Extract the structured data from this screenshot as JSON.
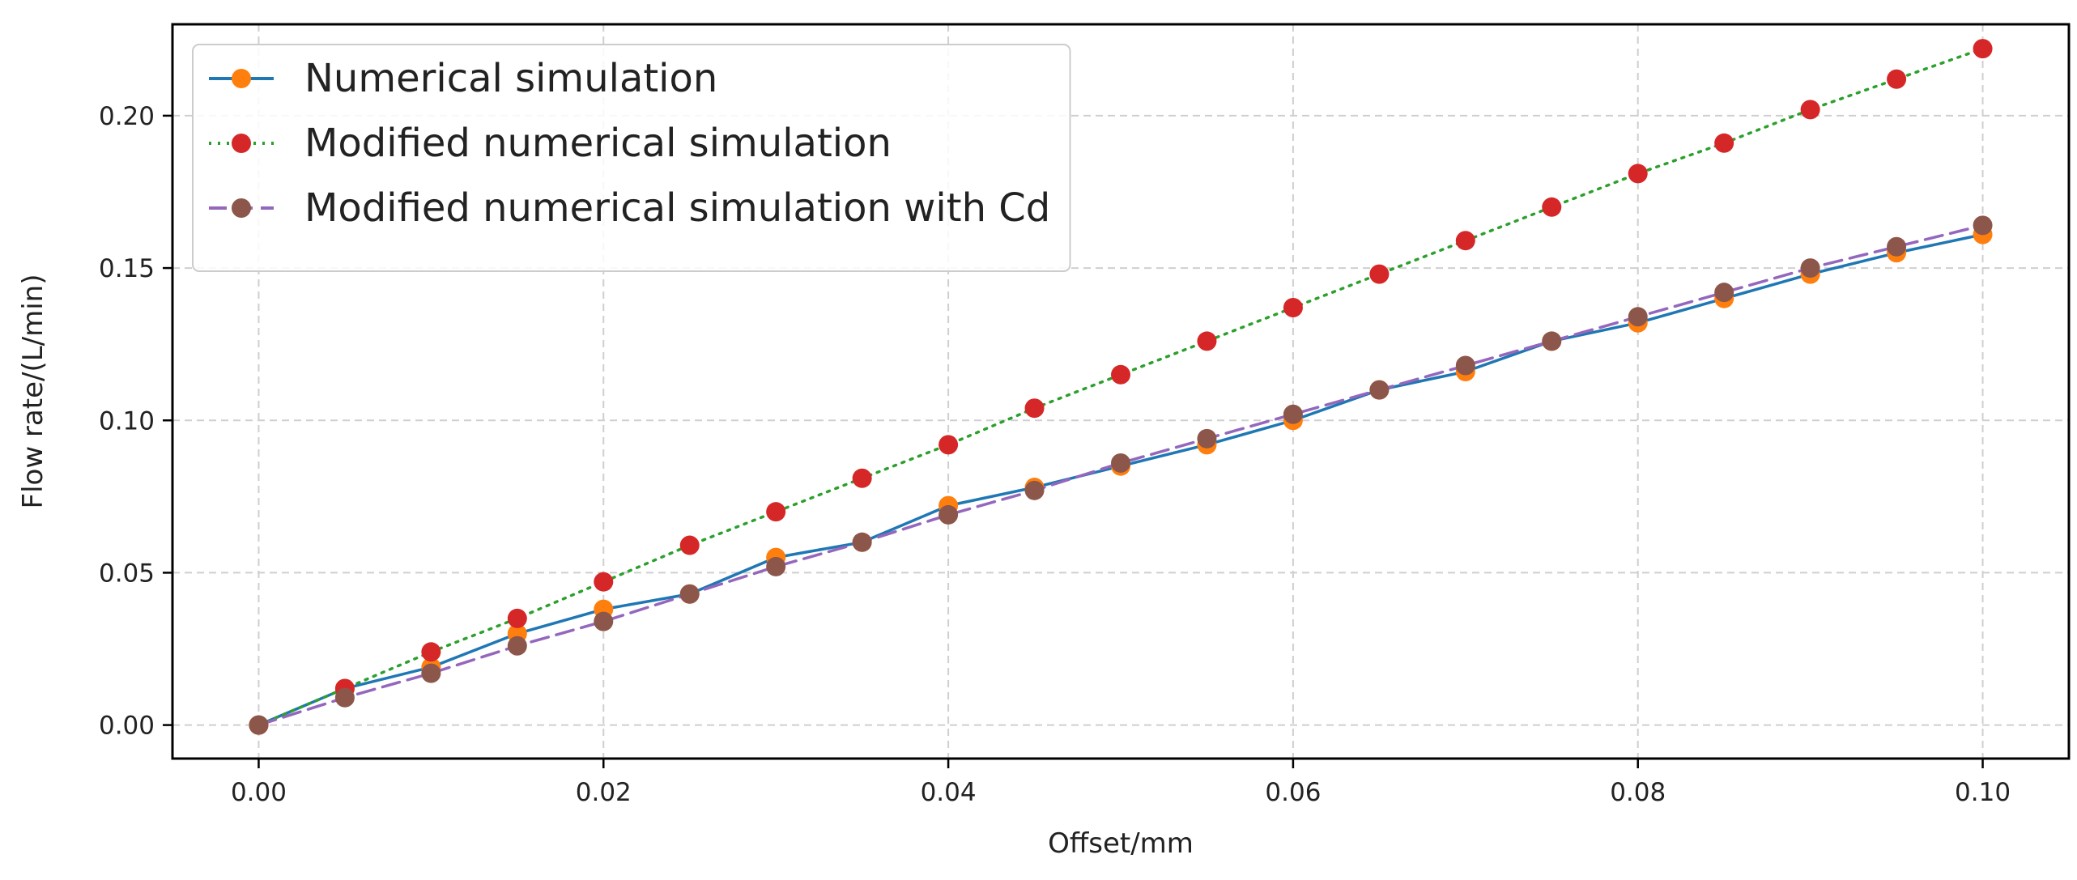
{
  "chart_data": {
    "type": "line",
    "title": "",
    "xlabel": "Offset/mm",
    "ylabel": "Flow rate/(L/min)",
    "xlim": [
      -0.005,
      0.105
    ],
    "ylim": [
      -0.011,
      0.23
    ],
    "grid": true,
    "legend_position": "top-left",
    "x": [
      0.0,
      0.005,
      0.01,
      0.015,
      0.02,
      0.025,
      0.03,
      0.035,
      0.04,
      0.045,
      0.05,
      0.055,
      0.06,
      0.065,
      0.07,
      0.075,
      0.08,
      0.085,
      0.09,
      0.095,
      0.1
    ],
    "x_ticks": [
      0.0,
      0.02,
      0.04,
      0.06,
      0.08,
      0.1
    ],
    "x_tick_labels": [
      "0.00",
      "0.02",
      "0.04",
      "0.06",
      "0.08",
      "0.10"
    ],
    "y_ticks": [
      0.0,
      0.05,
      0.1,
      0.15,
      0.2
    ],
    "y_tick_labels": [
      "0.00",
      "0.05",
      "0.10",
      "0.15",
      "0.20"
    ],
    "series": [
      {
        "name": "Numerical simulation",
        "line_color": "#1f77b4",
        "marker_color": "#ff7f0e",
        "line_style": "solid",
        "values": [
          0.0,
          0.012,
          0.019,
          0.03,
          0.038,
          0.043,
          0.055,
          0.06,
          0.072,
          0.078,
          0.085,
          0.092,
          0.1,
          0.11,
          0.116,
          0.126,
          0.132,
          0.14,
          0.148,
          0.155,
          0.161
        ]
      },
      {
        "name": "Modified numerical simulation",
        "line_color": "#2ca02c",
        "marker_color": "#d62728",
        "line_style": "dotted",
        "values": [
          0.0,
          0.012,
          0.024,
          0.035,
          0.047,
          0.059,
          0.07,
          0.081,
          0.092,
          0.104,
          0.115,
          0.126,
          0.137,
          0.148,
          0.159,
          0.17,
          0.181,
          0.191,
          0.202,
          0.212,
          0.222
        ]
      },
      {
        "name": "Modified numerical simulation with Cd",
        "line_color": "#9467bd",
        "marker_color": "#8c564b",
        "line_style": "dashed",
        "values": [
          0.0,
          0.009,
          0.017,
          0.026,
          0.034,
          0.043,
          0.052,
          0.06,
          0.069,
          0.077,
          0.086,
          0.094,
          0.102,
          0.11,
          0.118,
          0.126,
          0.134,
          0.142,
          0.15,
          0.157,
          0.164
        ]
      }
    ]
  }
}
